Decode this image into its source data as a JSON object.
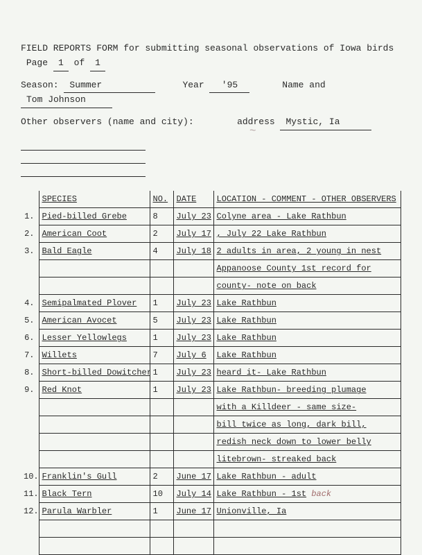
{
  "header": {
    "title_prefix": "FIELD REPORTS FORM for submitting seasonal observations of Iowa birds",
    "page_label": "Page",
    "page_num": "1",
    "page_of": "of",
    "page_total": "1",
    "season_label": "Season:",
    "season": "Summer",
    "year_label": "Year",
    "year": "'95",
    "name_label": "Name and",
    "name": "Tom Johnson",
    "other_label": "Other observers  (name and city):",
    "address_label": "address",
    "address": "Mystic, Ia"
  },
  "columns": {
    "species": "SPECIES",
    "no": "NO.",
    "date": "DATE",
    "loc": "LOCATION - COMMENT - OTHER OBSERVERS"
  },
  "rows": [
    {
      "n": "1.",
      "species": "Pied-billed Grebe",
      "no": "8",
      "date": "July 23",
      "loc": "Colyne area - Lake Rathbun"
    },
    {
      "n": "2.",
      "species": "American Coot",
      "no": "2",
      "date": "July 17",
      "loc": ", July 22   Lake Rathbun"
    },
    {
      "n": "3.",
      "species": "Bald Eagle",
      "no": "4",
      "date": "July 18",
      "loc": "2 adults in area, 2 young in nest"
    },
    {
      "n": "",
      "species": "",
      "no": "",
      "date": "",
      "loc": "Appanoose County 1st record for"
    },
    {
      "n": "",
      "species": "",
      "no": "",
      "date": "",
      "loc": "county- note on back"
    },
    {
      "n": "4.",
      "species": "Semipalmated Plover",
      "no": "1",
      "date": "July 23",
      "loc": "Lake Rathbun"
    },
    {
      "n": "5.",
      "species": "American Avocet",
      "no": "5",
      "date": "July 23",
      "loc": "Lake Rathbun"
    },
    {
      "n": "6.",
      "species": "Lesser Yellowlegs",
      "no": "1",
      "date": "July 23",
      "loc": "Lake Rathbun"
    },
    {
      "n": "7.",
      "species": "Willets",
      "no": "7",
      "date": "July 6",
      "loc": "Lake Rathbun"
    },
    {
      "n": "8.",
      "species": "Short-billed Dowitcher",
      "no": "1",
      "date": "July 23",
      "loc": "heard it- Lake Rathbun"
    },
    {
      "n": "9.",
      "species": "Red Knot",
      "no": "1",
      "date": "July 23",
      "loc": "Lake Rathbun- breeding plumage"
    },
    {
      "n": "",
      "species": "",
      "no": "",
      "date": "",
      "loc": "with a Killdeer - same size-"
    },
    {
      "n": "",
      "species": "",
      "no": "",
      "date": "",
      "loc": "bill twice as long, dark bill,"
    },
    {
      "n": "",
      "species": "",
      "no": "",
      "date": "",
      "loc": "redish neck down to lower belly"
    },
    {
      "n": "",
      "species": "",
      "no": "",
      "date": "",
      "loc": "litebrown- streaked back"
    },
    {
      "n": "10.",
      "species": "Franklin's Gull",
      "no": "2",
      "date": "June 17",
      "loc": "Lake Rathbun - adult"
    },
    {
      "n": "11.",
      "species": "Black Tern",
      "no": "10",
      "date": "July 14",
      "loc": "Lake Rathbun - 1st",
      "hand": "back"
    },
    {
      "n": "12.",
      "species": "Parula Warbler",
      "no": "1",
      "date": "June 17",
      "loc": "Unionville, Ia"
    },
    {
      "n": "",
      "species": "",
      "no": "",
      "date": "",
      "loc": ""
    },
    {
      "n": "",
      "species": "",
      "no": "",
      "date": "",
      "loc": ""
    }
  ]
}
